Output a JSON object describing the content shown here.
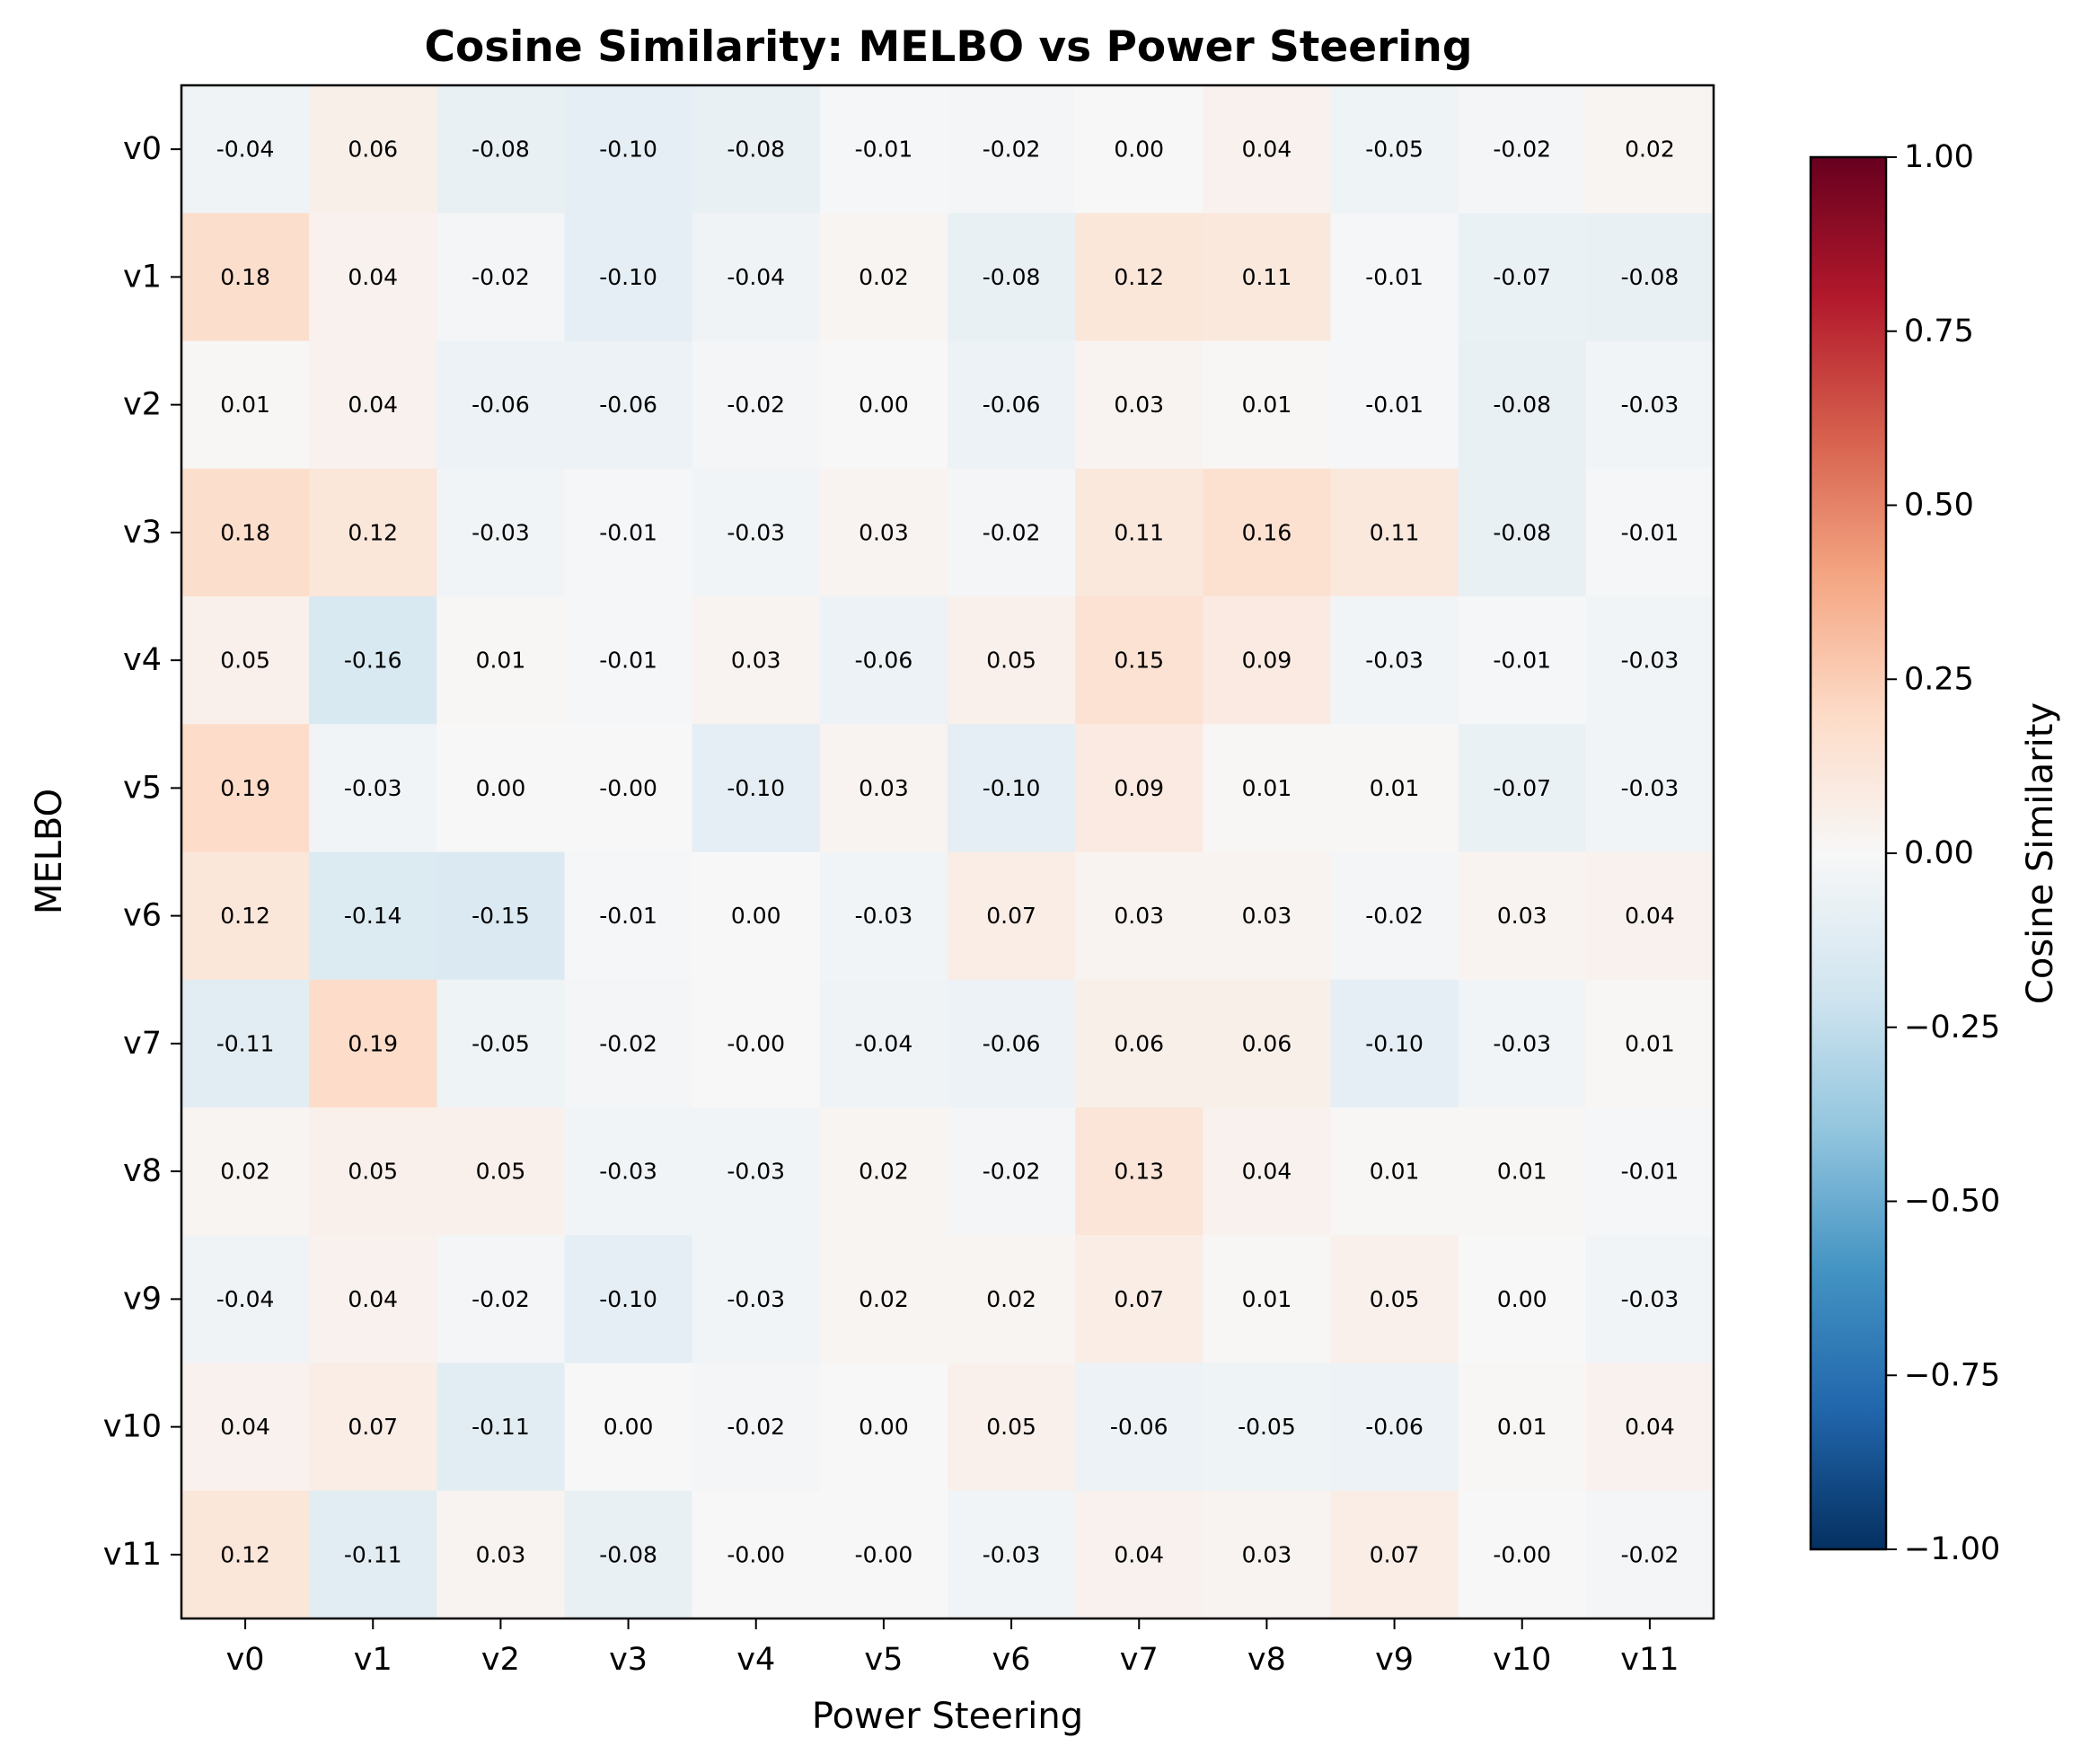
{
  "chart_data": {
    "type": "heatmap",
    "title": "Cosine Similarity: MELBO vs Power Steering",
    "xlabel": "Power Steering",
    "ylabel": "MELBO",
    "x_categories": [
      "v0",
      "v1",
      "v2",
      "v3",
      "v4",
      "v5",
      "v6",
      "v7",
      "v8",
      "v9",
      "v10",
      "v11"
    ],
    "y_categories": [
      "v0",
      "v1",
      "v2",
      "v3",
      "v4",
      "v5",
      "v6",
      "v7",
      "v8",
      "v9",
      "v10",
      "v11"
    ],
    "values": [
      [
        -0.04,
        0.06,
        -0.08,
        -0.1,
        -0.08,
        -0.01,
        -0.02,
        0.0,
        0.04,
        -0.05,
        -0.02,
        0.02
      ],
      [
        0.18,
        0.04,
        -0.02,
        -0.1,
        -0.04,
        0.02,
        -0.08,
        0.12,
        0.11,
        -0.01,
        -0.07,
        -0.08
      ],
      [
        0.01,
        0.04,
        -0.06,
        -0.06,
        -0.02,
        0.0,
        -0.06,
        0.03,
        0.01,
        -0.01,
        -0.08,
        -0.03
      ],
      [
        0.18,
        0.12,
        -0.03,
        -0.01,
        -0.03,
        0.03,
        -0.02,
        0.11,
        0.16,
        0.11,
        -0.08,
        -0.01
      ],
      [
        0.05,
        -0.16,
        0.01,
        -0.01,
        0.03,
        -0.06,
        0.05,
        0.15,
        0.09,
        -0.03,
        -0.01,
        -0.03
      ],
      [
        0.19,
        -0.03,
        0.0,
        -0.0,
        -0.1,
        0.03,
        -0.1,
        0.09,
        0.01,
        0.01,
        -0.07,
        -0.03
      ],
      [
        0.12,
        -0.14,
        -0.15,
        -0.01,
        0.0,
        -0.03,
        0.07,
        0.03,
        0.03,
        -0.02,
        0.03,
        0.04
      ],
      [
        -0.11,
        0.19,
        -0.05,
        -0.02,
        -0.0,
        -0.04,
        -0.06,
        0.06,
        0.06,
        -0.1,
        -0.03,
        0.01
      ],
      [
        0.02,
        0.05,
        0.05,
        -0.03,
        -0.03,
        0.02,
        -0.02,
        0.13,
        0.04,
        0.01,
        0.01,
        -0.01
      ],
      [
        -0.04,
        0.04,
        -0.02,
        -0.1,
        -0.03,
        0.02,
        0.02,
        0.07,
        0.01,
        0.05,
        0.0,
        -0.03
      ],
      [
        0.04,
        0.07,
        -0.11,
        0.0,
        -0.02,
        0.0,
        0.05,
        -0.06,
        -0.05,
        -0.06,
        0.01,
        0.04
      ],
      [
        0.12,
        -0.11,
        0.03,
        -0.08,
        -0.0,
        -0.0,
        -0.03,
        0.04,
        0.03,
        0.07,
        -0.0,
        -0.02
      ]
    ],
    "value_labels": [
      [
        "-0.04",
        "0.06",
        "-0.08",
        "-0.10",
        "-0.08",
        "-0.01",
        "-0.02",
        "0.00",
        "0.04",
        "-0.05",
        "-0.02",
        "0.02"
      ],
      [
        "0.18",
        "0.04",
        "-0.02",
        "-0.10",
        "-0.04",
        "0.02",
        "-0.08",
        "0.12",
        "0.11",
        "-0.01",
        "-0.07",
        "-0.08"
      ],
      [
        "0.01",
        "0.04",
        "-0.06",
        "-0.06",
        "-0.02",
        "0.00",
        "-0.06",
        "0.03",
        "0.01",
        "-0.01",
        "-0.08",
        "-0.03"
      ],
      [
        "0.18",
        "0.12",
        "-0.03",
        "-0.01",
        "-0.03",
        "0.03",
        "-0.02",
        "0.11",
        "0.16",
        "0.11",
        "-0.08",
        "-0.01"
      ],
      [
        "0.05",
        "-0.16",
        "0.01",
        "-0.01",
        "0.03",
        "-0.06",
        "0.05",
        "0.15",
        "0.09",
        "-0.03",
        "-0.01",
        "-0.03"
      ],
      [
        "0.19",
        "-0.03",
        "0.00",
        "-0.00",
        "-0.10",
        "0.03",
        "-0.10",
        "0.09",
        "0.01",
        "0.01",
        "-0.07",
        "-0.03"
      ],
      [
        "0.12",
        "-0.14",
        "-0.15",
        "-0.01",
        "0.00",
        "-0.03",
        "0.07",
        "0.03",
        "0.03",
        "-0.02",
        "0.03",
        "0.04"
      ],
      [
        "-0.11",
        "0.19",
        "-0.05",
        "-0.02",
        "-0.00",
        "-0.04",
        "-0.06",
        "0.06",
        "0.06",
        "-0.10",
        "-0.03",
        "0.01"
      ],
      [
        "0.02",
        "0.05",
        "0.05",
        "-0.03",
        "-0.03",
        "0.02",
        "-0.02",
        "0.13",
        "0.04",
        "0.01",
        "0.01",
        "-0.01"
      ],
      [
        "-0.04",
        "0.04",
        "-0.02",
        "-0.10",
        "-0.03",
        "0.02",
        "0.02",
        "0.07",
        "0.01",
        "0.05",
        "0.00",
        "-0.03"
      ],
      [
        "0.04",
        "0.07",
        "-0.11",
        "0.00",
        "-0.02",
        "0.00",
        "0.05",
        "-0.06",
        "-0.05",
        "-0.06",
        "0.01",
        "0.04"
      ],
      [
        "0.12",
        "-0.11",
        "0.03",
        "-0.08",
        "-0.00",
        "-0.00",
        "-0.03",
        "0.04",
        "0.03",
        "0.07",
        "-0.00",
        "-0.02"
      ]
    ],
    "colormap": "RdBu_r",
    "vmin": -1.0,
    "vmax": 1.0,
    "colorbar": {
      "label": "Cosine Similarity",
      "ticks": [
        1.0,
        0.75,
        0.5,
        0.25,
        0.0,
        -0.25,
        -0.5,
        -0.75,
        -1.0
      ],
      "tick_labels": [
        "1.00",
        "0.75",
        "0.50",
        "0.25",
        "0.00",
        "−0.25",
        "−0.50",
        "−0.75",
        "−1.00"
      ]
    },
    "grid": false
  }
}
